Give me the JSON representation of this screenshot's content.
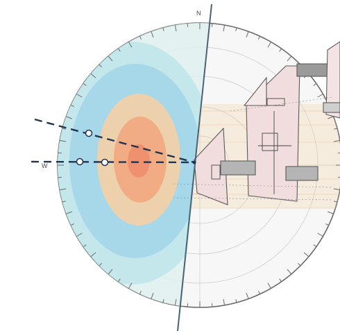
{
  "diagram": {
    "north_label": "N",
    "west_label": "W",
    "colors": {
      "background": "#ffffff",
      "dome_fill": "#f7f7f7",
      "ring": "#6a6a6a",
      "heat_outer": "#bfe6ea",
      "heat_mid": "#9fd4e8",
      "heat_inner": "#f5d0a6",
      "heat_core": "#f2a77f",
      "meridian": "#4a6274",
      "dashed_lines": "#1f3552",
      "building_fill": "#f1dddd",
      "building_edge": "#5a5a5a",
      "band": "#f6cf9a"
    },
    "handle_count": 3
  }
}
